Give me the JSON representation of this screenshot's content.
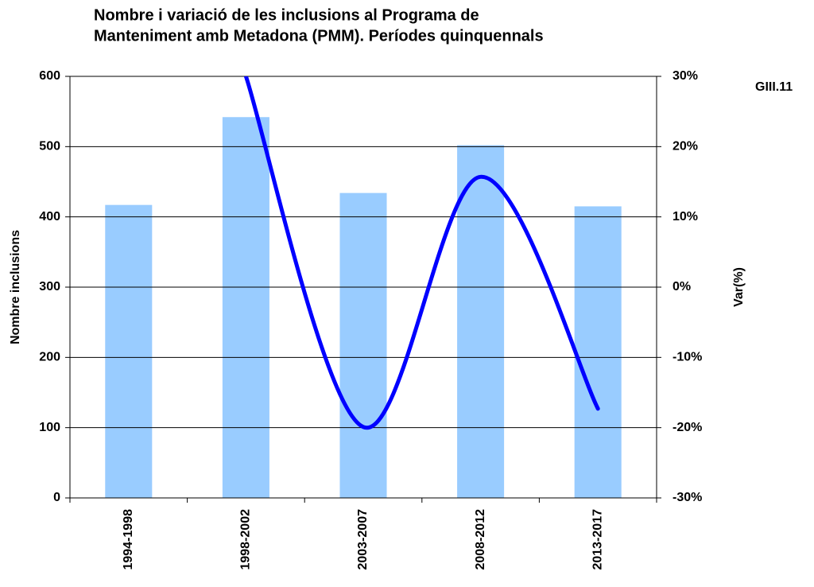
{
  "chart_data": {
    "type": "bar_line",
    "title": [
      "Nombre i variació de les inclusions al Programa de",
      "Manteniment amb Metadona (PMM). Períodes quinquennals"
    ],
    "annotation": "GIII.11",
    "ylabel": "Nombre inclusions",
    "y2label": "Var(%)",
    "categories": [
      "1994-1998",
      "1998-2002",
      "2003-2007",
      "2008-2012",
      "2013-2017"
    ],
    "series": [
      {
        "name": "Nombre inclusions",
        "type": "bar",
        "color": "#99ccff",
        "values": [
          417,
          542,
          434,
          502,
          415
        ]
      },
      {
        "name": "Var(%)",
        "type": "line",
        "axis": "y2",
        "color": "#0000ff",
        "values": [
          null,
          30.0,
          -19.9,
          15.7,
          -17.3
        ]
      }
    ],
    "ylim": [
      0,
      600
    ],
    "yticks": [
      0,
      100,
      200,
      300,
      400,
      500,
      600
    ],
    "y2lim": [
      -30,
      30
    ],
    "y2ticks": [
      {
        "value": -30,
        "label": "-30%"
      },
      {
        "value": -20,
        "label": "-20%"
      },
      {
        "value": -10,
        "label": "-10%"
      },
      {
        "value": 0,
        "label": "0%"
      },
      {
        "value": 10,
        "label": "10%"
      },
      {
        "value": 20,
        "label": "20%"
      },
      {
        "value": 30,
        "label": "30%"
      }
    ],
    "grid": true
  }
}
